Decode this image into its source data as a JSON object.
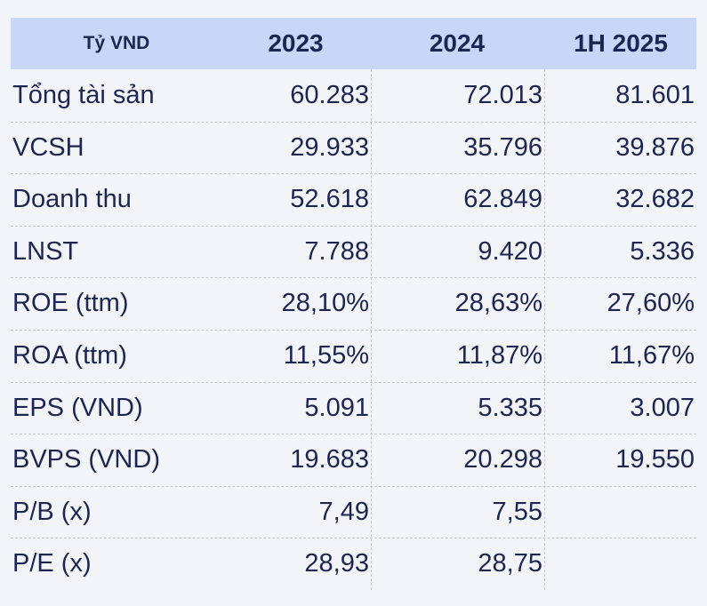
{
  "table": {
    "header": [
      "Tỷ VND",
      "2023",
      "2024",
      "1H 2025"
    ],
    "rows": [
      [
        "Tổng tài sản",
        "60.283",
        "72.013",
        "81.601"
      ],
      [
        "VCSH",
        "29.933",
        "35.796",
        "39.876"
      ],
      [
        "Doanh thu",
        "52.618",
        "62.849",
        "32.682"
      ],
      [
        "LNST",
        "7.788",
        "9.420",
        "5.336"
      ],
      [
        "ROE (ttm)",
        "28,10%",
        "28,63%",
        "27,60%"
      ],
      [
        "ROA (ttm)",
        "11,55%",
        "11,87%",
        "11,67%"
      ],
      [
        "EPS (VND)",
        "5.091",
        "5.335",
        "3.007"
      ],
      [
        "BVPS (VND)",
        "19.683",
        "20.298",
        "19.550"
      ],
      [
        "P/B (x)",
        "7,49",
        "7,55"
      ],
      [
        "P/E (x)",
        "28,93",
        "28,75"
      ]
    ]
  }
}
